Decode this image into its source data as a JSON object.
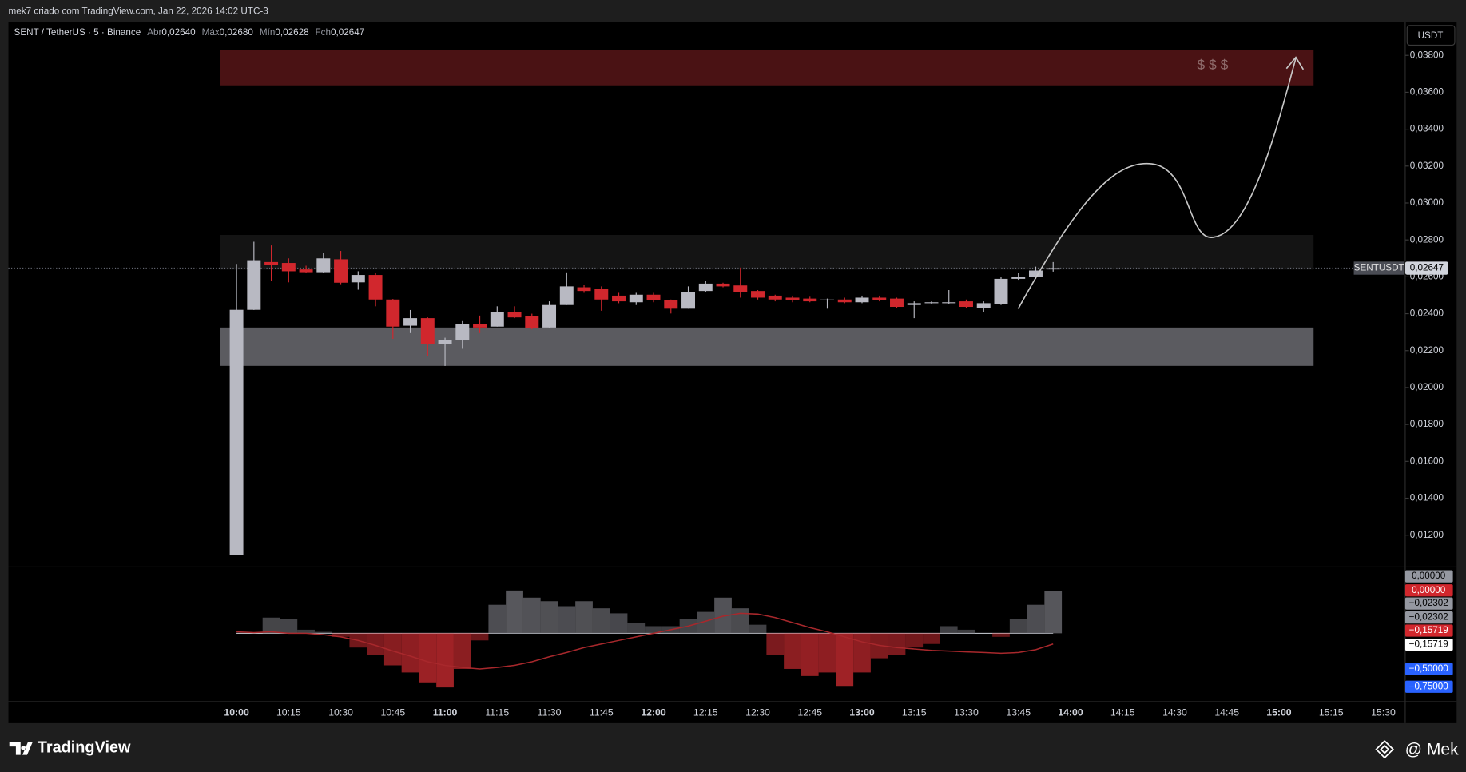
{
  "header": "mek7 criado com TradingView.com, Jan 22, 2026 14:02 UTC-3",
  "legend": {
    "symbol": "SENT / TetherUS · 5 · Binance",
    "fields": [
      {
        "name": "Abr",
        "value": "0,02640"
      },
      {
        "name": "Máx",
        "value": "0,02680"
      },
      {
        "name": "Mín",
        "value": "0,02628"
      },
      {
        "name": "Fch",
        "value": "0,02647"
      }
    ]
  },
  "currency": "USDT",
  "footer": {
    "brand": "TradingView",
    "author": "@ Mek"
  },
  "chart_data": {
    "type": "candlestick",
    "up_color": "#b8b9c2",
    "down_color": "#d1272d",
    "x": [
      "10:00",
      "10:05",
      "10:10",
      "10:15",
      "10:20",
      "10:25",
      "10:30",
      "10:35",
      "10:40",
      "10:45",
      "10:50",
      "10:55",
      "11:00",
      "11:05",
      "11:10",
      "11:15",
      "11:20",
      "11:25",
      "11:30",
      "11:35",
      "11:40",
      "11:45",
      "11:50",
      "11:55",
      "12:00",
      "12:05",
      "12:10",
      "12:15",
      "12:20",
      "12:25",
      "12:30",
      "12:35",
      "12:40",
      "12:45",
      "12:50",
      "12:55",
      "13:00",
      "13:05",
      "13:10",
      "13:15",
      "13:20",
      "13:25",
      "13:30",
      "13:35",
      "13:40",
      "13:45",
      "13:50",
      "13:55"
    ],
    "open": [
      0.01094,
      0.02421,
      0.0268,
      0.02675,
      0.0264,
      0.02625,
      0.02695,
      0.0257,
      0.0261,
      0.02477,
      0.02335,
      0.02376,
      0.02234,
      0.02259,
      0.02345,
      0.0233,
      0.0241,
      0.02386,
      0.02325,
      0.02447,
      0.02543,
      0.02533,
      0.02498,
      0.02462,
      0.02503,
      0.02472,
      0.02427,
      0.02523,
      0.02563,
      0.02553,
      0.02523,
      0.02498,
      0.02487,
      0.02482,
      0.02472,
      0.02477,
      0.02462,
      0.02487,
      0.02482,
      0.02447,
      0.02457,
      0.02457,
      0.02467,
      0.02432,
      0.02452,
      0.02589,
      0.02599,
      0.0264
    ],
    "high": [
      0.0267,
      0.0279,
      0.0277,
      0.027,
      0.0266,
      0.0273,
      0.0274,
      0.0263,
      0.0262,
      0.0248,
      0.0242,
      0.0238,
      0.0227,
      0.0236,
      0.0239,
      0.0244,
      0.0244,
      0.024,
      0.02467,
      0.02624,
      0.02558,
      0.02548,
      0.02513,
      0.02513,
      0.02513,
      0.02477,
      0.02548,
      0.02579,
      0.02568,
      0.0265,
      0.02528,
      0.02503,
      0.02498,
      0.02492,
      0.02482,
      0.02487,
      0.02498,
      0.02498,
      0.02487,
      0.02467,
      0.02467,
      0.02528,
      0.02477,
      0.02467,
      0.02599,
      0.0262,
      0.02655,
      0.0268
    ],
    "low": [
      0.01094,
      0.0242,
      0.0258,
      0.0257,
      0.0262,
      0.0262,
      0.0256,
      0.0253,
      0.0244,
      0.02264,
      0.02295,
      0.0217,
      0.02117,
      0.0221,
      0.02295,
      0.0233,
      0.02376,
      0.02315,
      0.02325,
      0.02447,
      0.02513,
      0.02416,
      0.02457,
      0.02447,
      0.02462,
      0.02401,
      0.02427,
      0.02518,
      0.02543,
      0.02487,
      0.02477,
      0.02467,
      0.02462,
      0.02462,
      0.02427,
      0.02457,
      0.02457,
      0.02467,
      0.02432,
      0.02376,
      0.02452,
      0.02452,
      0.02432,
      0.02411,
      0.02447,
      0.02584,
      0.02589,
      0.02628
    ],
    "close": [
      0.02421,
      0.0269,
      0.02665,
      0.0263,
      0.02625,
      0.027,
      0.02568,
      0.0261,
      0.02477,
      0.0233,
      0.02376,
      0.02234,
      0.02259,
      0.02345,
      0.02325,
      0.02411,
      0.0238,
      0.0232,
      0.02447,
      0.02548,
      0.02523,
      0.02477,
      0.02467,
      0.02503,
      0.02472,
      0.02427,
      0.02518,
      0.02563,
      0.02548,
      0.02518,
      0.02487,
      0.02477,
      0.02472,
      0.02467,
      0.02477,
      0.02462,
      0.02487,
      0.02472,
      0.02437,
      0.02457,
      0.02462,
      0.02462,
      0.02437,
      0.02457,
      0.02589,
      0.02599,
      0.02634,
      0.02647
    ],
    "ylim": [
      0.01033,
      0.03977
    ],
    "yticks": [
      {
        "value": 0.012,
        "label": "0,01200"
      },
      {
        "value": 0.014,
        "label": "0,01400"
      },
      {
        "value": 0.016,
        "label": "0,01600"
      },
      {
        "value": 0.018,
        "label": "0,01800"
      },
      {
        "value": 0.02,
        "label": "0,02000"
      },
      {
        "value": 0.022,
        "label": "0,02200"
      },
      {
        "value": 0.024,
        "label": "0,02400"
      },
      {
        "value": 0.026,
        "label": "0,02600"
      },
      {
        "value": 0.028,
        "label": "0,02800"
      },
      {
        "value": 0.03,
        "label": "0,03000"
      },
      {
        "value": 0.032,
        "label": "0,03200"
      },
      {
        "value": 0.034,
        "label": "0,03400"
      },
      {
        "value": 0.036,
        "label": "0,03600"
      },
      {
        "value": 0.038,
        "label": "0,03800"
      }
    ],
    "xticks": [
      "10:00",
      "10:15",
      "10:30",
      "10:45",
      "11:00",
      "11:15",
      "11:30",
      "11:45",
      "12:00",
      "12:15",
      "12:30",
      "12:45",
      "13:00",
      "13:15",
      "13:30",
      "13:45",
      "14:00",
      "14:15",
      "14:30",
      "14:45",
      "15:00",
      "15:15",
      "15:30"
    ],
    "grid": false,
    "last_price": {
      "symbol": "SENTUSDT",
      "value": 0.02647,
      "label": "0,02647"
    },
    "zone_label": "$ $ $",
    "indicator": {
      "ylim": [
        -0.96,
        0.93
      ],
      "series": [
        {
          "kind": "histogram",
          "up_color": "#6a6a70",
          "down_color": "#b3262b",
          "values": [
            0,
            0,
            0.22,
            0.2,
            0.05,
            0.02,
            -0.05,
            -0.2,
            -0.3,
            -0.45,
            -0.55,
            -0.7,
            -0.76,
            -0.5,
            -0.1,
            0.4,
            0.6,
            0.5,
            0.45,
            0.38,
            0.45,
            0.35,
            0.28,
            0.15,
            0.1,
            0.1,
            0.2,
            0.3,
            0.5,
            0.35,
            0.12,
            -0.3,
            -0.5,
            -0.6,
            -0.55,
            -0.75,
            -0.55,
            -0.35,
            -0.3,
            -0.2,
            -0.15,
            0.1,
            0.05,
            0,
            -0.05,
            0.2,
            0.4,
            0.59
          ]
        },
        {
          "kind": "line",
          "color": "#a8282c",
          "values": [
            0.02,
            0.01,
            0.02,
            0,
            0,
            -0.02,
            -0.05,
            -0.1,
            -0.17,
            -0.25,
            -0.32,
            -0.4,
            -0.45,
            -0.48,
            -0.5,
            -0.48,
            -0.45,
            -0.4,
            -0.33,
            -0.27,
            -0.2,
            -0.15,
            -0.1,
            -0.05,
            0,
            0.05,
            0.1,
            0.17,
            0.24,
            0.28,
            0.27,
            0.22,
            0.15,
            0.08,
            0.02,
            -0.05,
            -0.12,
            -0.17,
            -0.2,
            -0.22,
            -0.24,
            -0.25,
            -0.26,
            -0.27,
            -0.28,
            -0.27,
            -0.23,
            -0.15
          ]
        }
      ],
      "labels": [
        {
          "label": "0,00000",
          "color": "#9598a1",
          "text": "#000000"
        },
        {
          "label": "0,00000",
          "color": "#d1272d",
          "text": "#ffffff"
        },
        {
          "label": "−0,02302",
          "color": "#9598a1",
          "text": "#000000"
        },
        {
          "label": "−0,02302",
          "color": "#9598a1",
          "text": "#000000"
        },
        {
          "label": "−0,15719",
          "color": "#d1272d",
          "text": "#ffffff"
        },
        {
          "label": "−0,15719",
          "color": "#ffffff",
          "text": "#000000"
        },
        {
          "label": "−0,50000",
          "color": "#2962ff",
          "text": "#ffffff"
        },
        {
          "label": "−0,75000",
          "color": "#2962ff",
          "text": "#ffffff"
        }
      ]
    }
  }
}
